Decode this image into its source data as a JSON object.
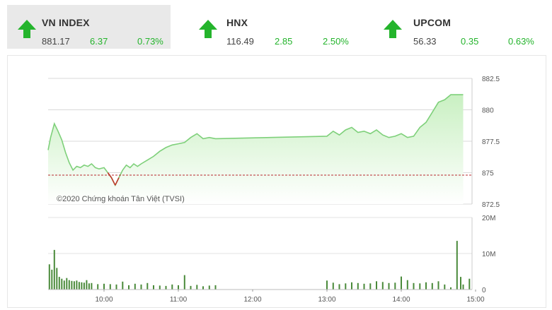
{
  "indices": [
    {
      "name": "VN INDEX",
      "price": "881.17",
      "change": "6.37",
      "percent": "0.73%",
      "direction": "up",
      "active": true
    },
    {
      "name": "HNX",
      "price": "116.49",
      "change": "2.85",
      "percent": "2.50%",
      "direction": "up",
      "active": false
    },
    {
      "name": "UPCOM",
      "price": "56.33",
      "change": "0.35",
      "percent": "0.63%",
      "direction": "up",
      "active": false
    }
  ],
  "colors": {
    "up": "#24b42c",
    "line": "#7ed07a",
    "fill": "#c9f0c2",
    "reference": "#b8292e",
    "down_line": "#c0392b",
    "volume": "#4a8a3a"
  },
  "credit": "©2020 Chứng khoán Tân Việt (TVSI)",
  "chart_data": [
    {
      "type": "area",
      "title": "",
      "reference": 874.8,
      "ylim": [
        872.5,
        882.5
      ],
      "yticks": [
        872.5,
        875,
        877.5,
        880,
        882.5
      ],
      "ytick_labels": [
        "872.5",
        "875",
        "877.5",
        "880",
        "882.5"
      ],
      "xlim": [
        "09:15",
        "15:00"
      ],
      "xticks": [
        "10:00",
        "11:00",
        "12:00",
        "13:00",
        "14:00",
        "15:00"
      ],
      "grid": true,
      "series": [
        {
          "x": [
            "09:15",
            "09:17",
            "09:20",
            "09:23",
            "09:26",
            "09:29",
            "09:32",
            "09:35",
            "09:38",
            "09:41",
            "09:44",
            "09:47",
            "09:50",
            "09:53",
            "09:56",
            "10:00",
            "10:03",
            "10:06",
            "10:09",
            "10:12",
            "10:15",
            "10:18",
            "10:21",
            "10:24",
            "10:27",
            "10:30",
            "10:35",
            "10:40",
            "10:45",
            "10:50",
            "10:55",
            "11:00",
            "11:05",
            "11:10",
            "11:15",
            "11:20",
            "11:25",
            "11:30",
            "13:00",
            "13:05",
            "13:10",
            "13:15",
            "13:20",
            "13:25",
            "13:30",
            "13:35",
            "13:40",
            "13:45",
            "13:50",
            "13:55",
            "14:00",
            "14:05",
            "14:10",
            "14:15",
            "14:20",
            "14:25",
            "14:30",
            "14:35",
            "14:40",
            "14:45",
            "14:48",
            "14:50"
          ],
          "y": [
            876.8,
            877.8,
            878.9,
            878.3,
            877.6,
            876.6,
            875.8,
            875.2,
            875.5,
            875.4,
            875.6,
            875.5,
            875.7,
            875.4,
            875.3,
            875.4,
            875.0,
            874.6,
            874.0,
            874.6,
            875.2,
            875.6,
            875.4,
            875.7,
            875.5,
            875.7,
            876.0,
            876.3,
            876.7,
            877.0,
            877.2,
            877.3,
            877.4,
            877.8,
            878.1,
            877.7,
            877.8,
            877.7,
            877.9,
            878.3,
            878.0,
            878.4,
            878.6,
            878.2,
            878.3,
            878.1,
            878.4,
            878.0,
            877.8,
            877.9,
            878.1,
            877.8,
            877.9,
            878.6,
            879.0,
            879.8,
            880.6,
            880.8,
            881.2,
            881.2,
            881.2,
            881.2
          ]
        }
      ]
    },
    {
      "type": "bar",
      "title": "",
      "ylim": [
        0,
        20
      ],
      "yticks": [
        0,
        10,
        20
      ],
      "ytick_labels": [
        "0",
        "10M",
        "20M"
      ],
      "xticks": [
        "10:00",
        "11:00",
        "12:00",
        "13:00",
        "14:00",
        "15:00"
      ],
      "series": [
        {
          "x": [
            "09:16",
            "09:18",
            "09:20",
            "09:22",
            "09:24",
            "09:26",
            "09:28",
            "09:30",
            "09:32",
            "09:34",
            "09:36",
            "09:38",
            "09:40",
            "09:42",
            "09:44",
            "09:46",
            "09:48",
            "09:50",
            "09:55",
            "10:00",
            "10:05",
            "10:10",
            "10:15",
            "10:20",
            "10:25",
            "10:30",
            "10:35",
            "10:40",
            "10:45",
            "10:50",
            "10:55",
            "11:00",
            "11:05",
            "11:10",
            "11:15",
            "11:20",
            "11:25",
            "11:30",
            "13:00",
            "13:05",
            "13:10",
            "13:15",
            "13:20",
            "13:25",
            "13:30",
            "13:35",
            "13:40",
            "13:45",
            "13:50",
            "13:55",
            "14:00",
            "14:05",
            "14:10",
            "14:15",
            "14:20",
            "14:25",
            "14:30",
            "14:35",
            "14:40",
            "14:45",
            "14:48",
            "14:50",
            "14:55"
          ],
          "values": [
            7.0,
            5.5,
            11.0,
            6.0,
            3.5,
            3.0,
            2.5,
            3.2,
            2.6,
            2.4,
            2.3,
            2.5,
            2.1,
            2.0,
            1.9,
            2.6,
            1.7,
            1.8,
            1.5,
            1.6,
            1.5,
            1.4,
            2.2,
            1.2,
            1.6,
            1.4,
            1.8,
            1.2,
            1.1,
            1.0,
            1.4,
            1.2,
            4.0,
            1.0,
            1.3,
            0.9,
            1.1,
            1.2,
            2.5,
            1.9,
            1.5,
            1.7,
            2.0,
            1.8,
            1.6,
            1.7,
            2.3,
            2.1,
            1.8,
            1.9,
            3.6,
            2.6,
            1.8,
            1.7,
            2.0,
            1.8,
            2.3,
            1.4,
            0.6,
            13.5,
            3.5,
            1.4,
            3.0
          ]
        }
      ]
    }
  ]
}
